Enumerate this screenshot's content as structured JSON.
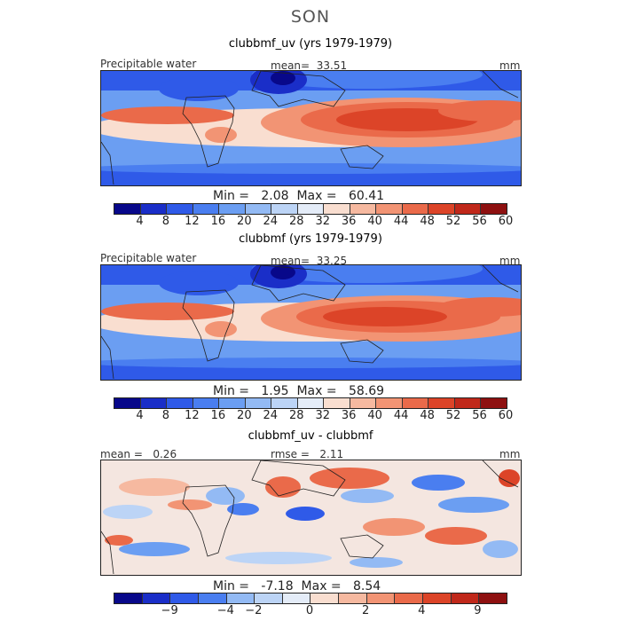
{
  "season": "SON",
  "units_label": "mm",
  "colors": {
    "levels": [
      "#08088a",
      "#1a2ec8",
      "#2f5ae8",
      "#4a7ef0",
      "#6b9ef2",
      "#93baf4",
      "#bcd4f6",
      "#e4ecf8",
      "#f9ded0",
      "#f6b9a0",
      "#f29474",
      "#ea6a4a",
      "#dc4428",
      "#c0281a",
      "#8e1010"
    ]
  },
  "panels": [
    {
      "title": "clubbmf_uv (yrs 1979-1979)",
      "left_label": "Precipitable water",
      "mean_label": "mean=",
      "mean_value": "33.51",
      "units": "mm",
      "min_label": "Min =",
      "min_value": "2.08",
      "max_label": "Max =",
      "max_value": "60.41"
    },
    {
      "title": "clubbmf (yrs 1979-1979)",
      "left_label": "Precipitable water",
      "mean_label": "mean=",
      "mean_value": "33.25",
      "units": "mm",
      "min_label": "Min =",
      "min_value": "1.95",
      "max_label": "Max =",
      "max_value": "58.69"
    },
    {
      "title": "clubbmf_uv - clubbmf",
      "left_label": "mean =",
      "left_value": "0.26",
      "rmse_label": "rmse =",
      "rmse_value": "2.11",
      "units": "mm",
      "min_label": "Min =",
      "min_value": "-7.18",
      "max_label": "Max =",
      "max_value": "8.54"
    }
  ],
  "chart_data": [
    {
      "type": "heatmap",
      "title": "clubbmf_uv (yrs 1979-1979)",
      "variable": "Precipitable water",
      "units": "mm",
      "mean": 33.51,
      "min": 2.08,
      "max": 60.41,
      "colorbar_ticks": [
        "4",
        "8",
        "12",
        "16",
        "20",
        "24",
        "28",
        "32",
        "36",
        "40",
        "44",
        "48",
        "52",
        "56",
        "60"
      ]
    },
    {
      "type": "heatmap",
      "title": "clubbmf (yrs 1979-1979)",
      "variable": "Precipitable water",
      "units": "mm",
      "mean": 33.25,
      "min": 1.95,
      "max": 58.69,
      "colorbar_ticks": [
        "4",
        "8",
        "12",
        "16",
        "20",
        "24",
        "28",
        "32",
        "36",
        "40",
        "44",
        "48",
        "52",
        "56",
        "60"
      ]
    },
    {
      "type": "heatmap",
      "title": "clubbmf_uv - clubbmf",
      "units": "mm",
      "mean": 0.26,
      "rmse": 2.11,
      "min": -7.18,
      "max": 8.54,
      "colorbar_ticks": [
        "−9",
        "−4",
        "−2",
        "0",
        "2",
        "4",
        "9"
      ]
    }
  ]
}
